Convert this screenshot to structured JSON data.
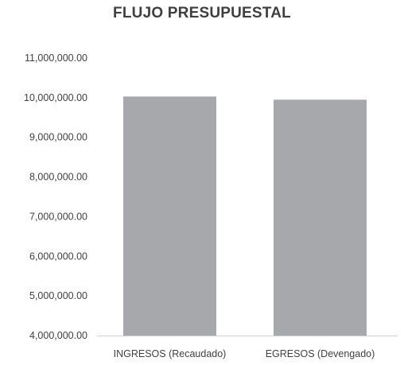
{
  "chart_data": {
    "type": "bar",
    "title": "FLUJO PRESUPUESTAL",
    "categories": [
      "INGRESOS (Recaudado)",
      "EGRESOS (Devengado)"
    ],
    "values": [
      10030000,
      9950000
    ],
    "ylim": [
      4000000,
      11000000
    ],
    "yticks": [
      4000000,
      5000000,
      6000000,
      7000000,
      8000000,
      9000000,
      10000000,
      11000000
    ],
    "ytick_labels": [
      "4,000,000.00",
      "5,000,000.00",
      "6,000,000.00",
      "7,000,000.00",
      "8,000,000.00",
      "9,000,000.00",
      "10,000,000.00",
      "11,000,000.00"
    ],
    "xlabel": "",
    "ylabel": "",
    "grid": false,
    "legend": "none",
    "bar_color": "#a6a8ab",
    "text_color": "#3f3f3f"
  }
}
